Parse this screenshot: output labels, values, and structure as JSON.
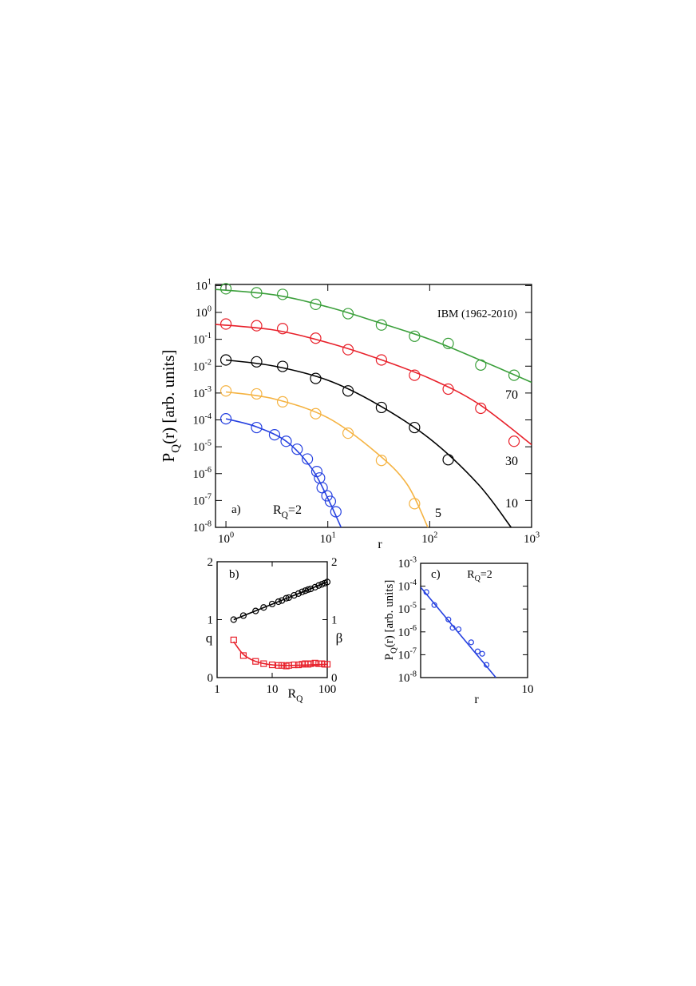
{
  "chart_data": [
    {
      "type": "scatter",
      "panel_label": "a)",
      "annotations": [
        "IBM (1962-2010)"
      ],
      "xlabel": "r",
      "ylabel": {
        "main": "P",
        "sub": "Q",
        "rest": "(r) [arb. units]"
      },
      "xscale": "log",
      "yscale": "log",
      "xlim": [
        0.79,
        1000
      ],
      "ylim": [
        1e-08,
        11
      ],
      "xticks": [
        {
          "value": 1,
          "label": "10",
          "exp": "0"
        },
        {
          "value": 10,
          "label": "10",
          "exp": "1"
        },
        {
          "value": 100,
          "label": "10",
          "exp": "2"
        },
        {
          "value": 1000,
          "label": "10",
          "exp": "3"
        }
      ],
      "yticks": [
        {
          "value": 1e-08,
          "label": "10",
          "exp": "-8"
        },
        {
          "value": 1e-07,
          "label": "10",
          "exp": "-7"
        },
        {
          "value": 1e-06,
          "label": "10",
          "exp": "-6"
        },
        {
          "value": 1e-05,
          "label": "10",
          "exp": "-5"
        },
        {
          "value": 0.0001,
          "label": "10",
          "exp": "-4"
        },
        {
          "value": 0.001,
          "label": "10",
          "exp": "-3"
        },
        {
          "value": 0.01,
          "label": "10",
          "exp": "-2"
        },
        {
          "value": 0.1,
          "label": "10",
          "exp": "-1"
        },
        {
          "value": 1,
          "label": "10",
          "exp": "0"
        },
        {
          "value": 10,
          "label": "10",
          "exp": "1"
        }
      ],
      "series": [
        {
          "label": "70",
          "color": "#3a9f3a",
          "marker": "circle",
          "x": [
            1,
            2,
            3.6,
            7.6,
            15.8,
            33.6,
            71,
            152,
            317,
            673
          ],
          "values": [
            7.6,
            5.4,
            4.7,
            2.0,
            0.9,
            0.34,
            0.13,
            0.07,
            0.011,
            0.0046
          ],
          "fit_x": [
            0.79,
            3,
            10,
            30,
            100,
            300,
            1000
          ],
          "fit_y": [
            7.2,
            4.5,
            1.6,
            0.45,
            0.1,
            0.018,
            0.0025
          ]
        },
        {
          "label": "30",
          "color": "#e8202a",
          "marker": "circle",
          "x": [
            1,
            2,
            3.6,
            7.6,
            15.8,
            33.6,
            71,
            152,
            317,
            673
          ],
          "values": [
            0.37,
            0.32,
            0.25,
            0.11,
            0.041,
            0.017,
            0.0046,
            0.0014,
            0.00027,
            1.6e-05
          ],
          "fit_x": [
            0.79,
            3,
            10,
            30,
            100,
            300,
            1000
          ],
          "fit_y": [
            0.36,
            0.22,
            0.075,
            0.02,
            0.0035,
            0.0004,
            1.2e-05
          ]
        },
        {
          "label": "10",
          "color": "#000000",
          "marker": "circle",
          "x": [
            1,
            2,
            3.6,
            7.6,
            15.8,
            33.6,
            71,
            152
          ],
          "values": [
            0.017,
            0.0145,
            0.0098,
            0.0035,
            0.0012,
            0.00029,
            5.2e-05,
            3.3e-06
          ],
          "fit_x": [
            1,
            3,
            10,
            30,
            100,
            300,
            630
          ],
          "fit_y": [
            0.017,
            0.01,
            0.003,
            0.0004,
            2e-05,
            4e-07,
            1e-08
          ]
        },
        {
          "label": "5",
          "color": "#f5b342",
          "marker": "circle",
          "x": [
            1,
            2,
            3.6,
            7.6,
            15.8,
            33.6,
            71
          ],
          "values": [
            0.0012,
            0.00093,
            0.00047,
            0.00017,
            3.2e-05,
            3.1e-06,
            7.6e-08
          ],
          "fit_x": [
            1,
            3,
            10,
            30,
            60,
            96
          ],
          "fit_y": [
            0.0011,
            0.0006,
            0.00012,
            6e-06,
            4e-07,
            1e-08
          ]
        },
        {
          "label": {
            "main": "R",
            "sub": "Q",
            "rest": "=2"
          },
          "color": "#2540e0",
          "marker": "circle",
          "x": [
            1,
            2,
            3,
            3.9,
            5,
            6.3,
            7.8,
            8.3,
            8.8,
            9.8,
            10.6,
            12
          ],
          "values": [
            0.00011,
            5.2e-05,
            2.8e-05,
            1.6e-05,
            8.1e-06,
            3.5e-06,
            1.2e-06,
            6.9e-07,
            3e-07,
            1.5e-07,
            9.3e-08,
            3.8e-08
          ],
          "fit_x": [
            1,
            2,
            4,
            7,
            10,
            13.5
          ],
          "fit_y": [
            0.00011,
            5.5e-05,
            1.5e-05,
            1.5e-06,
            1.2e-07,
            1e-08
          ]
        }
      ]
    },
    {
      "type": "scatter",
      "panel_label": "b)",
      "xlabel": {
        "main": "R",
        "sub": "Q"
      },
      "ylabel": "q",
      "y2label": "β",
      "xscale": "log",
      "yscale": "linear",
      "xlim": [
        1,
        100
      ],
      "ylim": [
        0,
        2
      ],
      "y2lim": [
        0,
        2
      ],
      "xticks": [
        1,
        10,
        100
      ],
      "yticks": [
        0,
        1,
        2
      ],
      "y2ticks": [
        0,
        1,
        2
      ],
      "series": [
        {
          "color": "#000000",
          "marker": "circle",
          "x": [
            2,
            3,
            5,
            7,
            10,
            13,
            15,
            18,
            20,
            25,
            30,
            35,
            40,
            45,
            50,
            60,
            70,
            80,
            90,
            100
          ],
          "values": [
            1.0,
            1.07,
            1.15,
            1.21,
            1.27,
            1.31,
            1.33,
            1.37,
            1.38,
            1.42,
            1.45,
            1.48,
            1.5,
            1.52,
            1.53,
            1.56,
            1.59,
            1.61,
            1.63,
            1.65
          ],
          "fit_x": [
            2,
            100
          ],
          "fit_y": [
            1.0,
            1.65
          ]
        },
        {
          "color": "#e8202a",
          "marker": "square",
          "axis": "y2",
          "x": [
            2,
            3,
            5,
            7,
            10,
            13,
            15,
            18,
            20,
            25,
            30,
            35,
            40,
            45,
            50,
            60,
            70,
            80,
            90,
            100
          ],
          "values": [
            0.65,
            0.38,
            0.28,
            0.24,
            0.22,
            0.21,
            0.21,
            0.2,
            0.21,
            0.22,
            0.22,
            0.23,
            0.24,
            0.23,
            0.24,
            0.25,
            0.24,
            0.24,
            0.23,
            0.23
          ],
          "fit_x": [
            2,
            3,
            5,
            10,
            20,
            50,
            100
          ],
          "fit_y": [
            0.62,
            0.4,
            0.28,
            0.22,
            0.21,
            0.22,
            0.23
          ]
        }
      ]
    },
    {
      "type": "scatter",
      "panel_label": "c)",
      "annotations": [
        {
          "main": "R",
          "sub": "Q",
          "rest": "=2"
        }
      ],
      "xlabel": "r",
      "ylabel": {
        "main": "P",
        "sub": "Q",
        "rest": "(r) [arb. units]"
      },
      "xscale": "log",
      "yscale": "log",
      "xlim": [
        3,
        10
      ],
      "ylim": [
        1e-08,
        0.001
      ],
      "xticks": [
        10
      ],
      "yticks": [
        {
          "value": 1e-08,
          "label": "10",
          "exp": "-8"
        },
        {
          "value": 1e-07,
          "label": "10",
          "exp": "-7"
        },
        {
          "value": 1e-06,
          "label": "10",
          "exp": "-6"
        },
        {
          "value": 1e-05,
          "label": "10",
          "exp": "-5"
        },
        {
          "value": 0.0001,
          "label": "10",
          "exp": "-4"
        },
        {
          "value": 0.001,
          "label": "10",
          "exp": "-3"
        }
      ],
      "series": [
        {
          "color": "#2540e0",
          "marker": "circle",
          "x": [
            3.2,
            3.5,
            4.1,
            4.3,
            4.6,
            5.3,
            5.7,
            6.0,
            6.3
          ],
          "values": [
            5.5e-05,
            1.5e-05,
            3.5e-06,
            1.5e-06,
            1.3e-06,
            3.5e-07,
            1.4e-07,
            1.1e-07,
            3.6e-08
          ],
          "fit_x": [
            3,
            7
          ],
          "fit_y": [
            9e-05,
            1e-08
          ]
        }
      ]
    }
  ]
}
